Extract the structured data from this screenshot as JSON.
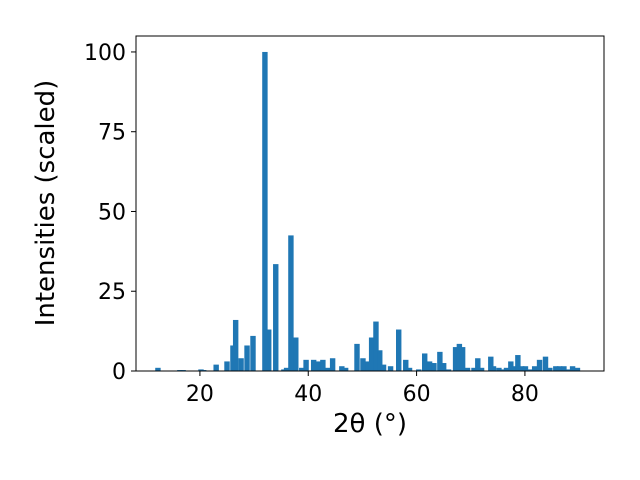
{
  "chart_data": {
    "type": "bar",
    "x_label": "2θ (°)",
    "y_label": "Intensities (scaled)",
    "color": "#1f77b4",
    "grid": false,
    "xlim": [
      8.2,
      94.6
    ],
    "xticks": [
      20,
      40,
      60,
      80
    ],
    "ylim": [
      0,
      105
    ],
    "yticks": [
      0,
      25,
      50,
      75,
      100
    ],
    "x": [
      12.25,
      16.3,
      16.9,
      20.2,
      20.7,
      23,
      25,
      26.1,
      26.6,
      27.6,
      28.7,
      29.8,
      32,
      32.7,
      34,
      35.5,
      36,
      36.8,
      37.7,
      38.8,
      39.6,
      41,
      41.8,
      42.7,
      43.6,
      44.5,
      46.2,
      46.9,
      49,
      50.1,
      51,
      51.7,
      52.5,
      53.2,
      53.9,
      55.2,
      56.7,
      58,
      58.7,
      60.4,
      61.5,
      62.4,
      63.2,
      64.3,
      65,
      65.9,
      67.2,
      67.9,
      68.5,
      69.4,
      70.6,
      71.3,
      72,
      73.7,
      74.2,
      75.2,
      75.9,
      76.6,
      77.4,
      78.1,
      78.7,
      79.4,
      80.1,
      80.9,
      81.8,
      82.7,
      83.8,
      84.6,
      85.7,
      86.4,
      87.2,
      87.9,
      88.8,
      89.7
    ],
    "values": [
      1,
      0.3,
      0.3,
      0.5,
      0.3,
      2,
      3,
      8,
      16,
      4,
      8,
      11,
      100,
      13,
      33.5,
      0.5,
      1,
      42.5,
      10.5,
      1,
      3.5,
      3.5,
      3,
      3.5,
      1,
      4,
      1.5,
      1,
      8.5,
      4,
      3,
      10.5,
      15.5,
      6.5,
      2,
      1.5,
      13,
      3.5,
      1,
      0.5,
      5.5,
      3,
      2.5,
      6,
      2.5,
      0.5,
      7.5,
      8.5,
      7.5,
      1,
      1,
      4,
      1,
      4.5,
      1.5,
      1,
      0.5,
      1,
      3,
      1.5,
      5,
      1.5,
      1.5,
      0.5,
      1.5,
      3.5,
      4.5,
      1,
      1.5,
      1.5,
      1.5,
      0.5,
      1.5,
      1
    ]
  }
}
